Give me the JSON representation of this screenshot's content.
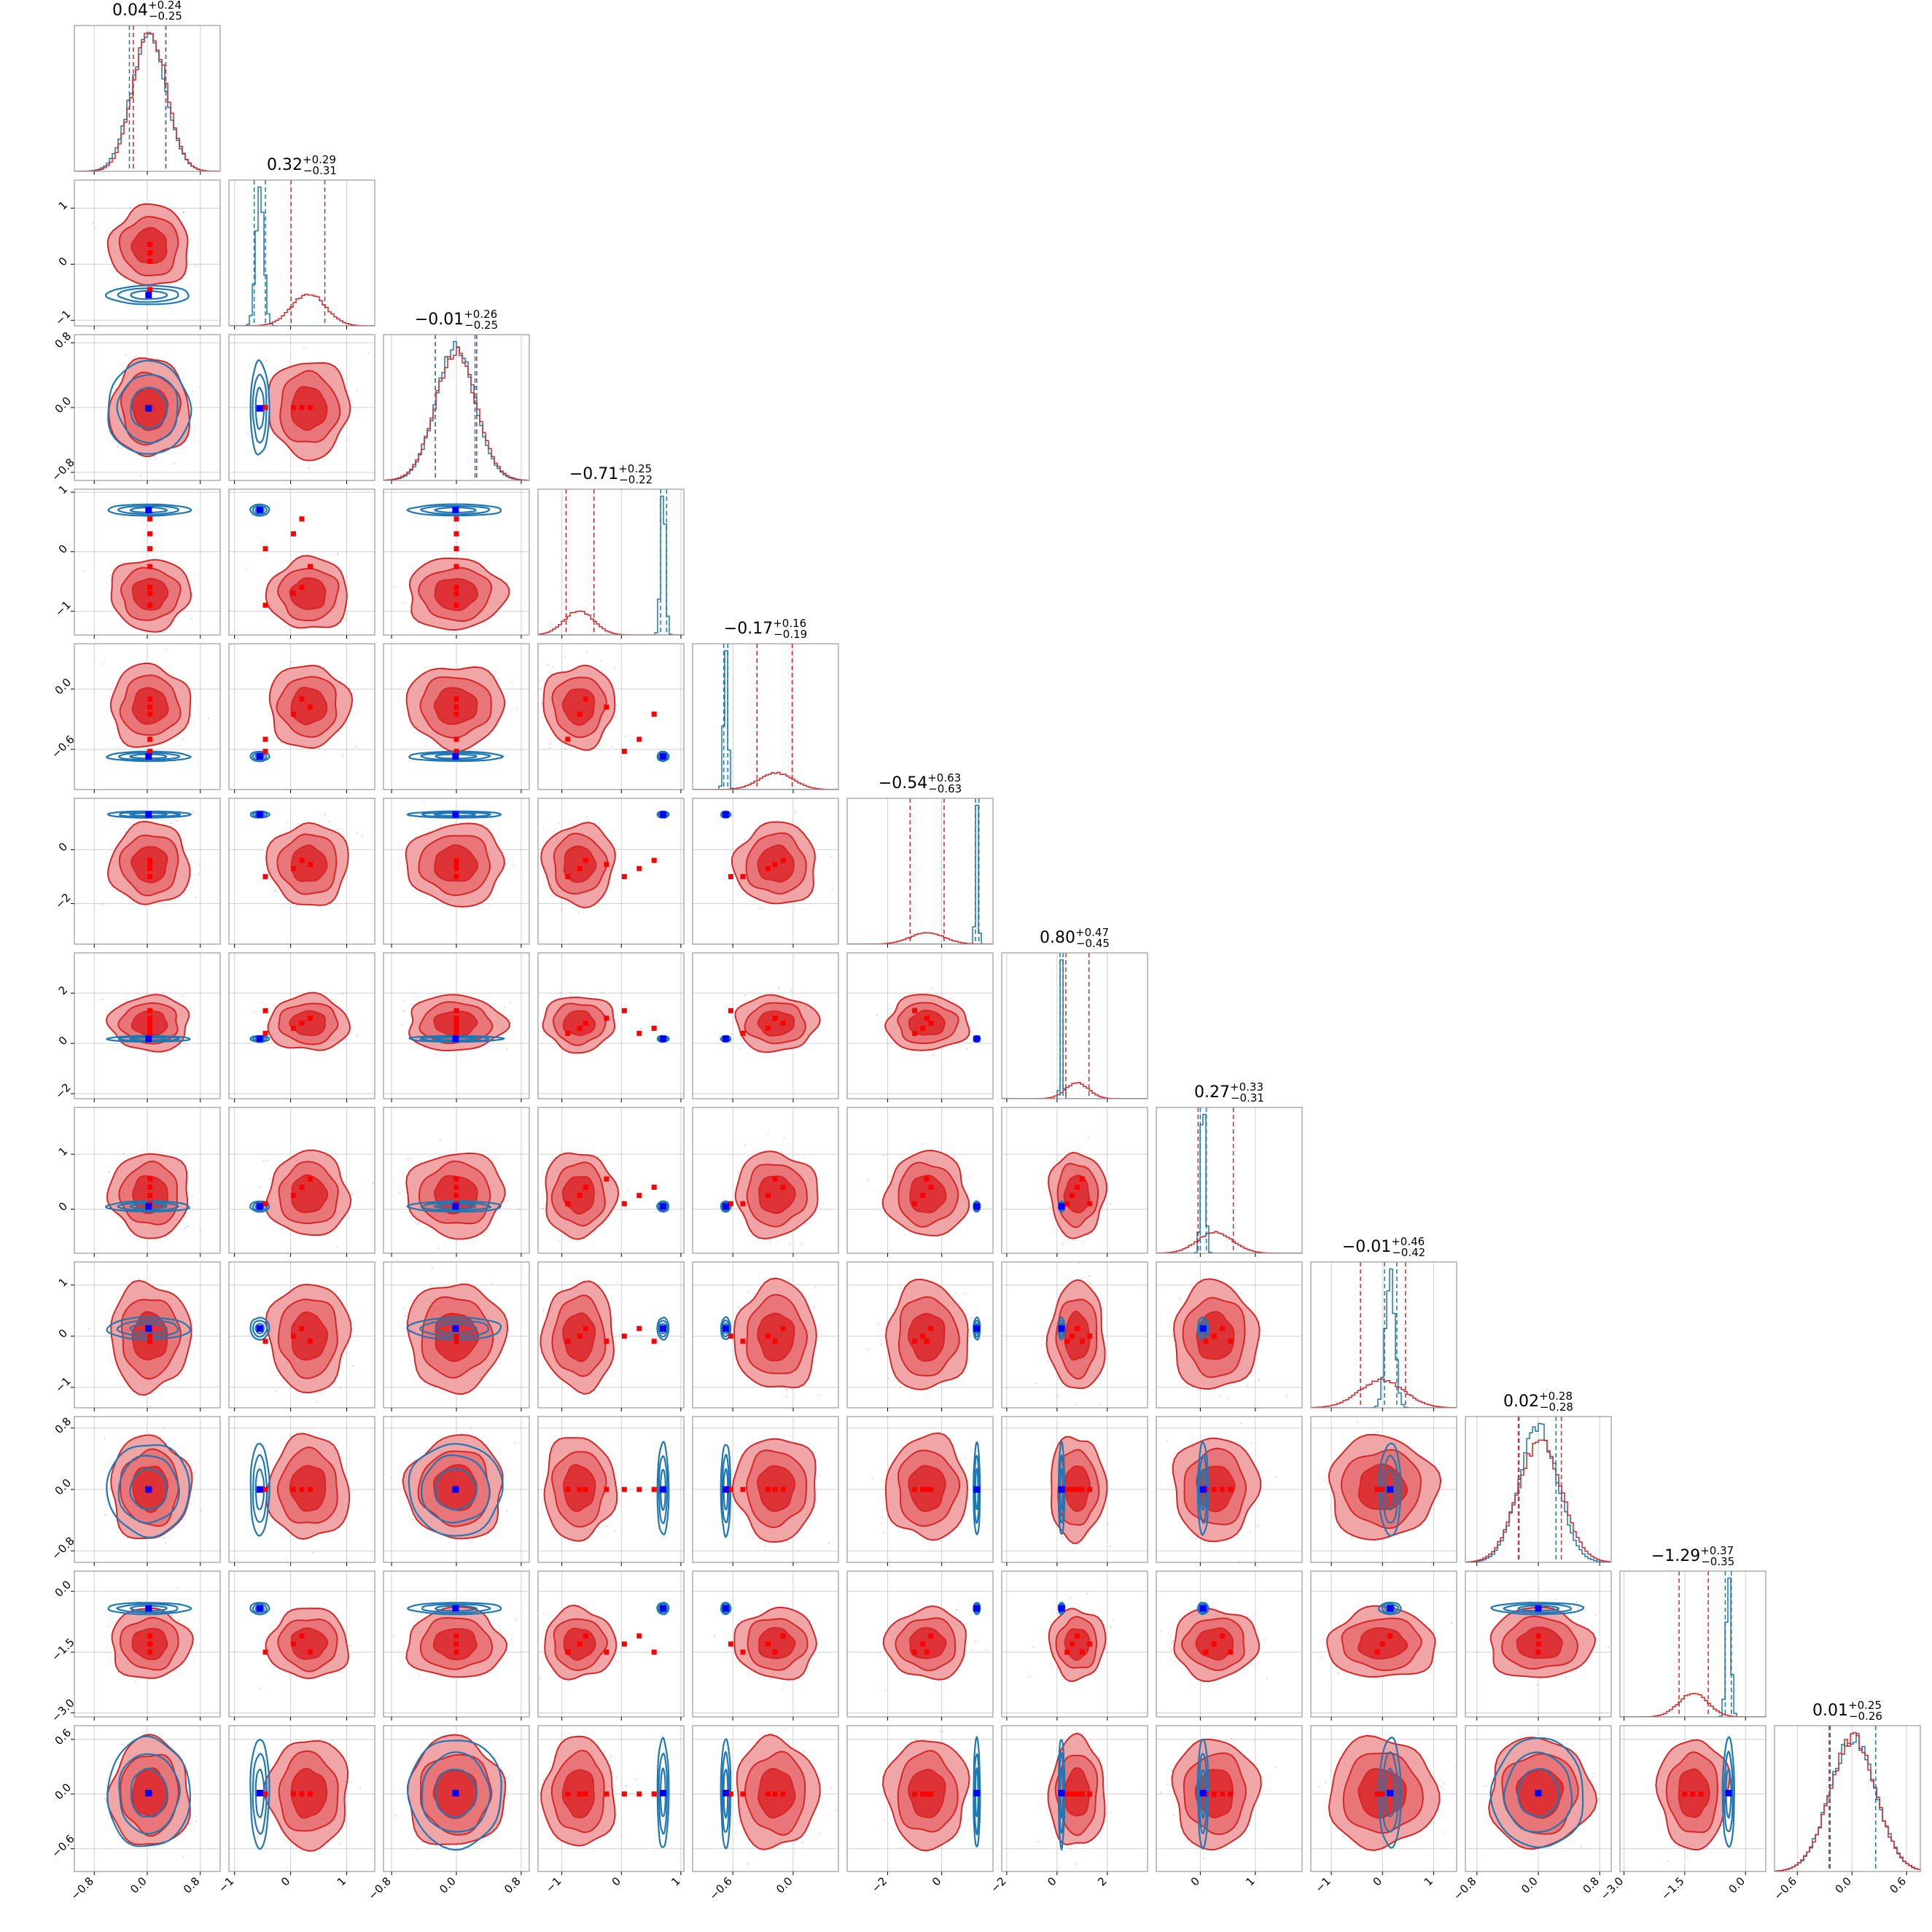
{
  "chart_data": {
    "type": "corner",
    "n_params": 12,
    "grid": true,
    "colors": {
      "red_series": "#d62728",
      "red_fill_outer": "#f0a5a6",
      "red_fill_mid": "#e87577",
      "red_fill_inner": "#dd3336",
      "blue_series": "#1f77b4",
      "truth_marker": "#0000ff",
      "red_marker": "#ff0000",
      "grid_color": "#b0b0b0",
      "axes_edge": "#999999"
    },
    "params": [
      {
        "title_value": "0.04",
        "title_plus": "+0.24",
        "title_minus": "−0.25",
        "range": [
          -1.1,
          1.1
        ],
        "red": {
          "mu": 0.04,
          "sd": 0.25
        },
        "blue": {
          "mu": 0.02,
          "sd": 0.26
        },
        "red_q": [
          -0.21,
          0.28
        ],
        "blue_q": [
          -0.27,
          0.28
        ],
        "ticks": [
          -0.8,
          0.0,
          0.8
        ],
        "tick_labels": [
          "−0.8",
          "0.0",
          "0.8"
        ],
        "red_markers": [
          0.04
        ]
      },
      {
        "title_value": "0.32",
        "title_plus": "+0.29",
        "title_minus": "−0.31",
        "range": [
          -1.1,
          1.5
        ],
        "red": {
          "mu": 0.32,
          "sd": 0.3
        },
        "blue": {
          "mu": -0.55,
          "sd": 0.07
        },
        "red_q": [
          0.01,
          0.61
        ],
        "blue_q": [
          -0.65,
          -0.45
        ],
        "ticks": [
          -1,
          0,
          1
        ],
        "tick_labels": [
          "−1",
          "0",
          "1"
        ],
        "red_markers": [
          -0.45,
          0.05,
          0.2,
          0.35
        ]
      },
      {
        "title_value": "−0.01",
        "title_plus": "+0.26",
        "title_minus": "−0.25",
        "range": [
          -0.9,
          0.9
        ],
        "red": {
          "mu": -0.01,
          "sd": 0.25
        },
        "blue": {
          "mu": -0.01,
          "sd": 0.24
        },
        "red_q": [
          -0.26,
          0.25
        ],
        "blue_q": [
          -0.26,
          0.23
        ],
        "ticks": [
          -0.8,
          0.0,
          0.8
        ],
        "tick_labels": [
          "−0.8",
          "0.0",
          "0.8"
        ],
        "red_markers": [
          0.0
        ]
      },
      {
        "title_value": "−0.71",
        "title_plus": "+0.25",
        "title_minus": "−0.22",
        "range": [
          -1.4,
          1.05
        ],
        "red": {
          "mu": -0.71,
          "sd": 0.25
        },
        "blue": {
          "mu": 0.7,
          "sd": 0.04
        },
        "red_q": [
          -0.93,
          -0.46
        ],
        "blue_q": [
          0.66,
          0.76
        ],
        "ticks": [
          -1,
          0,
          1
        ],
        "tick_labels": [
          "−1",
          "0",
          "1"
        ],
        "red_markers": [
          -0.9,
          -0.7,
          -0.6,
          -0.25,
          0.05,
          0.3,
          0.55
        ]
      },
      {
        "title_value": "−0.17",
        "title_plus": "+0.16",
        "title_minus": "−0.19",
        "range": [
          -1.0,
          0.45
        ],
        "red": {
          "mu": -0.17,
          "sd": 0.17
        },
        "blue": {
          "mu": -0.67,
          "sd": 0.02
        },
        "red_q": [
          -0.36,
          -0.01
        ],
        "blue_q": [
          -0.69,
          -0.65
        ],
        "ticks": [
          -0.6,
          0.0
        ],
        "tick_labels": [
          "−0.6",
          "0.0"
        ],
        "red_markers": [
          -0.5,
          -0.25,
          -0.1,
          -0.18,
          -0.62
        ]
      },
      {
        "title_value": "−0.54",
        "title_plus": "+0.63",
        "title_minus": "−0.63",
        "range": [
          -3.5,
          1.9
        ],
        "red": {
          "mu": -0.54,
          "sd": 0.63
        },
        "blue": {
          "mu": 1.3,
          "sd": 0.05
        },
        "red_q": [
          -1.17,
          0.09
        ],
        "blue_q": [
          1.25,
          1.38
        ],
        "ticks": [
          -2,
          0
        ],
        "tick_labels": [
          "−2",
          "0"
        ],
        "red_markers": [
          -1.0,
          -0.7,
          -0.4,
          -0.55
        ]
      },
      {
        "title_value": "0.80",
        "title_plus": "+0.47",
        "title_minus": "−0.45",
        "range": [
          -2.2,
          3.6
        ],
        "red": {
          "mu": 0.8,
          "sd": 0.46
        },
        "blue": {
          "mu": 0.18,
          "sd": 0.05
        },
        "red_q": [
          0.35,
          1.27
        ],
        "blue_q": [
          0.12,
          0.24
        ],
        "ticks": [
          -2,
          0,
          2
        ],
        "tick_labels": [
          "−2",
          "0",
          "2"
        ],
        "red_markers": [
          0.4,
          0.6,
          0.8,
          1.0,
          1.3
        ]
      },
      {
        "title_value": "0.27",
        "title_plus": "+0.33",
        "title_minus": "−0.31",
        "range": [
          -0.8,
          1.85
        ],
        "red": {
          "mu": 0.27,
          "sd": 0.32
        },
        "blue": {
          "mu": 0.05,
          "sd": 0.04
        },
        "red_q": [
          -0.04,
          0.6
        ],
        "blue_q": [
          0.0,
          0.11
        ],
        "ticks": [
          0,
          1
        ],
        "tick_labels": [
          "0",
          "1"
        ],
        "red_markers": [
          0.1,
          0.25,
          0.4,
          0.55
        ]
      },
      {
        "title_value": "−0.01",
        "title_plus": "+0.46",
        "title_minus": "−0.42",
        "range": [
          -1.4,
          1.45
        ],
        "red": {
          "mu": -0.01,
          "sd": 0.44
        },
        "blue": {
          "mu": 0.15,
          "sd": 0.09
        },
        "red_q": [
          -0.43,
          0.45
        ],
        "blue_q": [
          0.04,
          0.28
        ],
        "ticks": [
          -1,
          0,
          1
        ],
        "tick_labels": [
          "−1",
          "0",
          "1"
        ],
        "red_markers": [
          -0.1,
          0.0,
          0.15
        ]
      },
      {
        "title_value": "0.02",
        "title_plus": "+0.28",
        "title_minus": "−0.28",
        "range": [
          -0.95,
          0.95
        ],
        "red": {
          "mu": 0.02,
          "sd": 0.28
        },
        "blue": {
          "mu": 0.0,
          "sd": 0.25
        },
        "red_q": [
          -0.26,
          0.3
        ],
        "blue_q": [
          -0.25,
          0.23
        ],
        "ticks": [
          -0.8,
          0.0,
          0.8
        ],
        "tick_labels": [
          "−0.8",
          "0.0",
          "0.8"
        ],
        "red_markers": [
          0.0
        ]
      },
      {
        "title_value": "−1.29",
        "title_plus": "+0.37",
        "title_minus": "−0.35",
        "range": [
          -3.1,
          0.5
        ],
        "red": {
          "mu": -1.29,
          "sd": 0.36
        },
        "blue": {
          "mu": -0.42,
          "sd": 0.06
        },
        "red_q": [
          -1.64,
          -0.92
        ],
        "blue_q": [
          -0.5,
          -0.35
        ],
        "ticks": [
          -3.0,
          -1.5,
          0.0
        ],
        "tick_labels": [
          "−3.0",
          "−1.5",
          "0.0"
        ],
        "red_markers": [
          -1.5,
          -1.3,
          -1.1
        ]
      },
      {
        "title_value": "0.01",
        "title_plus": "+0.25",
        "title_minus": "−0.26",
        "range": [
          -0.85,
          0.75
        ],
        "red": {
          "mu": 0.01,
          "sd": 0.25
        },
        "blue": {
          "mu": 0.01,
          "sd": 0.25
        },
        "red_q": [
          -0.25,
          0.26
        ],
        "blue_q": [
          -0.24,
          0.26
        ],
        "ticks": [
          -0.6,
          0.0,
          0.6
        ],
        "tick_labels": [
          "−0.6",
          "0.0",
          "0.6"
        ],
        "red_markers": [
          0.0
        ]
      }
    ]
  }
}
